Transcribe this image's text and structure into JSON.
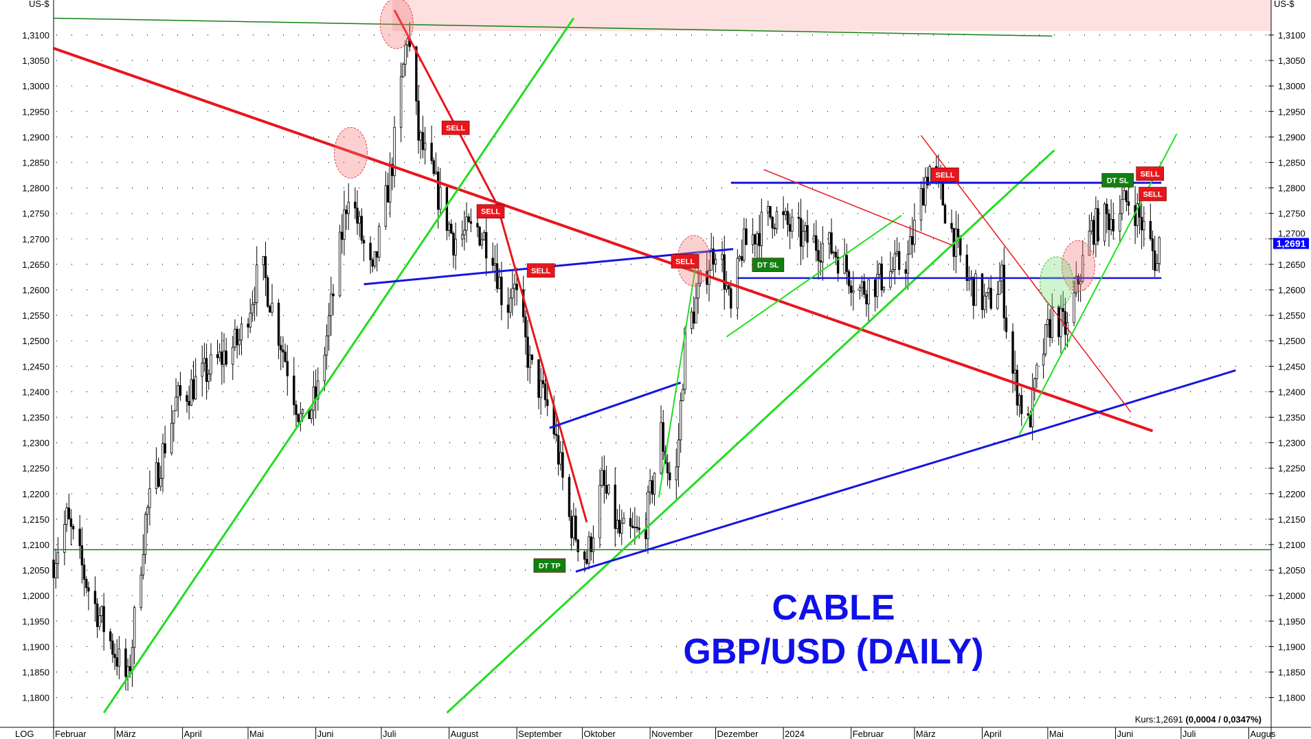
{
  "chart_data": {
    "type": "candlestick",
    "title_lines": [
      "CABLE",
      "GBP/USD (DAILY)"
    ],
    "unit_label": "US-$",
    "scale_label": "LOG",
    "quote": {
      "label": "Kurs:1,2691",
      "change": "(0,0004 / 0,0347%)"
    },
    "last_price": "1,2691",
    "colors": {
      "sell": "#e8161c",
      "dt": "#108010",
      "last_price": "#0000ff",
      "title": "#1010e8",
      "resistance_zone": "#fde0e0"
    },
    "ylim": [
      1.177,
      1.318
    ],
    "y_ticks": [
      "1,3100",
      "1,3050",
      "1,3000",
      "1,2950",
      "1,2900",
      "1,2850",
      "1,2800",
      "1,2750",
      "1,2700",
      "1,2650",
      "1,2600",
      "1,2550",
      "1,2500",
      "1,2450",
      "1,2400",
      "1,2350",
      "1,2300",
      "1,2250",
      "1,2200",
      "1,2150",
      "1,2100",
      "1,2050",
      "1,2000",
      "1,1950",
      "1,1900",
      "1,1850",
      "1,1800"
    ],
    "x_ticks": [
      {
        "label": "Februar",
        "date": "2023-02-01"
      },
      {
        "label": "März",
        "date": "2023-03-01"
      },
      {
        "label": "April",
        "date": "2023-04-01"
      },
      {
        "label": "Mai",
        "date": "2023-05-01"
      },
      {
        "label": "Juni",
        "date": "2023-06-01"
      },
      {
        "label": "Juli",
        "date": "2023-07-01"
      },
      {
        "label": "August",
        "date": "2023-08-01"
      },
      {
        "label": "September",
        "date": "2023-09-01"
      },
      {
        "label": "Oktober",
        "date": "2023-10-01"
      },
      {
        "label": "November",
        "date": "2023-11-01"
      },
      {
        "label": "Dezember",
        "date": "2023-12-01"
      },
      {
        "label": "2024",
        "date": "2024-01-01"
      },
      {
        "label": "Februar",
        "date": "2024-02-01"
      },
      {
        "label": "März",
        "date": "2024-03-01"
      },
      {
        "label": "April",
        "date": "2024-04-01"
      },
      {
        "label": "Mai",
        "date": "2024-05-01"
      },
      {
        "label": "Juni",
        "date": "2024-06-01"
      },
      {
        "label": "Juli",
        "date": "2024-07-01"
      },
      {
        "label": "Augus",
        "date": "2024-08-01"
      }
    ],
    "price_path": [
      [
        "2023-02-01",
        1.207
      ],
      [
        "2023-02-07",
        1.215
      ],
      [
        "2023-02-18",
        1.2
      ],
      [
        "2023-03-07",
        1.183
      ],
      [
        "2023-03-15",
        1.215
      ],
      [
        "2023-03-29",
        1.238
      ],
      [
        "2023-04-15",
        1.245
      ],
      [
        "2023-04-27",
        1.25
      ],
      [
        "2023-05-07",
        1.265
      ],
      [
        "2023-05-19",
        1.245
      ],
      [
        "2023-05-26",
        1.233
      ],
      [
        "2023-06-02",
        1.24
      ],
      [
        "2023-06-10",
        1.262
      ],
      [
        "2023-06-16",
        1.28
      ],
      [
        "2023-06-27",
        1.262
      ],
      [
        "2023-07-06",
        1.285
      ],
      [
        "2023-07-13",
        1.311
      ],
      [
        "2023-07-18",
        1.29
      ],
      [
        "2023-07-26",
        1.28
      ],
      [
        "2023-08-03",
        1.27
      ],
      [
        "2023-08-14",
        1.272
      ],
      [
        "2023-08-21",
        1.268
      ],
      [
        "2023-08-27",
        1.255
      ],
      [
        "2023-08-30",
        1.262
      ],
      [
        "2023-09-07",
        1.245
      ],
      [
        "2023-09-17",
        1.235
      ],
      [
        "2023-09-25",
        1.215
      ],
      [
        "2023-10-03",
        1.207
      ],
      [
        "2023-10-10",
        1.222
      ],
      [
        "2023-10-18",
        1.212
      ],
      [
        "2023-10-29",
        1.212
      ],
      [
        "2023-11-06",
        1.232
      ],
      [
        "2023-11-12",
        1.218
      ],
      [
        "2023-11-17",
        1.25
      ],
      [
        "2023-11-25",
        1.262
      ],
      [
        "2023-12-02",
        1.27
      ],
      [
        "2023-12-08",
        1.255
      ],
      [
        "2023-12-13",
        1.268
      ],
      [
        "2023-12-27",
        1.275
      ],
      [
        "2024-01-10",
        1.27
      ],
      [
        "2024-01-24",
        1.268
      ],
      [
        "2024-02-05",
        1.26
      ],
      [
        "2024-02-14",
        1.262
      ],
      [
        "2024-02-27",
        1.266
      ],
      [
        "2024-03-06",
        1.282
      ],
      [
        "2024-03-09",
        1.285
      ],
      [
        "2024-03-19",
        1.27
      ],
      [
        "2024-03-25",
        1.262
      ],
      [
        "2024-04-03",
        1.257
      ],
      [
        "2024-04-10",
        1.262
      ],
      [
        "2024-04-14",
        1.245
      ],
      [
        "2024-04-22",
        1.233
      ],
      [
        "2024-04-27",
        1.245
      ],
      [
        "2024-05-03",
        1.255
      ],
      [
        "2024-05-10",
        1.252
      ],
      [
        "2024-05-15",
        1.262
      ],
      [
        "2024-05-21",
        1.272
      ],
      [
        "2024-06-01",
        1.275
      ],
      [
        "2024-06-08",
        1.278
      ],
      [
        "2024-06-15",
        1.271
      ],
      [
        "2024-06-20",
        1.265
      ],
      [
        "2024-06-21",
        1.2691
      ]
    ],
    "horizontal_lines": [
      {
        "price": 1.209,
        "color": "#108010"
      }
    ],
    "trendlines": [
      {
        "from": [
          "2023-02-01",
          1.3133
        ],
        "to": [
          "2024-05-03",
          1.3098
        ],
        "color": "#108010",
        "width": 1.5
      },
      {
        "from": [
          "2023-02-01",
          1.3074
        ],
        "to": [
          "2024-06-18",
          1.2323
        ],
        "color": "#e8161c",
        "width": 4
      },
      {
        "from": [
          "2023-02-24",
          1.177
        ],
        "to": [
          "2023-09-27",
          1.3133
        ],
        "color": "#22dd22",
        "width": 3
      },
      {
        "from": [
          "2023-07-31",
          1.177
        ],
        "to": [
          "2024-05-04",
          1.2874
        ],
        "color": "#22dd22",
        "width": 3
      },
      {
        "from": [
          "2023-06-23",
          1.2611
        ],
        "to": [
          "2023-12-09",
          1.268
        ],
        "color": "#1515e0",
        "width": 3
      },
      {
        "from": [
          "2023-07-07",
          1.3149
        ],
        "to": [
          "2023-08-23",
          1.2767
        ],
        "color": "#e8161c",
        "width": 3
      },
      {
        "from": [
          "2023-08-23",
          1.2767
        ],
        "to": [
          "2023-10-03",
          1.2144
        ],
        "color": "#e8161c",
        "width": 3
      },
      {
        "from": [
          "2023-09-16",
          1.2329
        ],
        "to": [
          "2023-11-15",
          1.2418
        ],
        "color": "#1515e0",
        "width": 3
      },
      {
        "from": [
          "2023-11-05",
          1.2193
        ],
        "to": [
          "2023-11-23",
          1.2677
        ],
        "color": "#22dd22",
        "width": 2
      },
      {
        "from": [
          "2023-09-28",
          1.2047
        ],
        "to": [
          "2024-07-26",
          1.2442
        ],
        "color": "#1515e0",
        "width": 3
      },
      {
        "from": [
          "2023-12-08",
          1.281
        ],
        "to": [
          "2024-06-22",
          1.281
        ],
        "color": "#1515e0",
        "width": 3
      },
      {
        "from": [
          "2023-12-11",
          1.2623
        ],
        "to": [
          "2024-06-22",
          1.2623
        ],
        "color": "#1515e0",
        "width": 2.5
      },
      {
        "from": [
          "2023-12-06",
          1.2508
        ],
        "to": [
          "2024-02-24",
          1.2746
        ],
        "color": "#22dd22",
        "width": 2
      },
      {
        "from": [
          "2023-12-23",
          1.2836
        ],
        "to": [
          "2024-03-18",
          1.2688
        ],
        "color": "#e8161c",
        "width": 1.5
      },
      {
        "from": [
          "2024-03-04",
          1.2903
        ],
        "to": [
          "2024-06-08",
          1.236
        ],
        "color": "#e8161c",
        "width": 1.5
      },
      {
        "from": [
          "2024-04-18",
          1.2316
        ],
        "to": [
          "2024-06-29",
          1.2906
        ],
        "color": "#22dd22",
        "width": 2
      }
    ],
    "resistance_zone": {
      "from": "2023-07-06",
      "price_above": 1.3108
    },
    "signals": [
      {
        "label": "SELL",
        "date": "2023-08-04",
        "price": 1.2918,
        "type": "sell"
      },
      {
        "label": "SELL",
        "date": "2023-08-20",
        "price": 1.2754,
        "type": "sell"
      },
      {
        "label": "SELL",
        "date": "2023-09-12",
        "price": 1.2638,
        "type": "sell"
      },
      {
        "label": "DT TP",
        "date": "2023-09-16",
        "price": 1.2059,
        "type": "dt"
      },
      {
        "label": "SELL",
        "date": "2023-11-17",
        "price": 1.2656,
        "type": "sell"
      },
      {
        "label": "DT SL",
        "date": "2023-12-25",
        "price": 1.2649,
        "type": "dt"
      },
      {
        "label": "SELL",
        "date": "2024-03-15",
        "price": 1.2826,
        "type": "sell"
      },
      {
        "label": "DT SL",
        "date": "2024-06-02",
        "price": 1.2815,
        "type": "dt"
      },
      {
        "label": "SELL",
        "date": "2024-06-10",
        "price": 1.2828,
        "type": "sell"
      },
      {
        "label": "SELL",
        "date": "2024-06-18",
        "price": 1.2788,
        "type": "sell"
      }
    ],
    "highlight_circles": [
      {
        "date": "2023-07-08",
        "price": 1.3123,
        "color": "red"
      },
      {
        "date": "2023-06-17",
        "price": 1.2869,
        "color": "red"
      },
      {
        "date": "2023-11-21",
        "price": 1.2657,
        "color": "red"
      },
      {
        "date": "2024-05-15",
        "price": 1.2647,
        "color": "red"
      },
      {
        "date": "2024-05-05",
        "price": 1.2615,
        "color": "green"
      }
    ]
  }
}
